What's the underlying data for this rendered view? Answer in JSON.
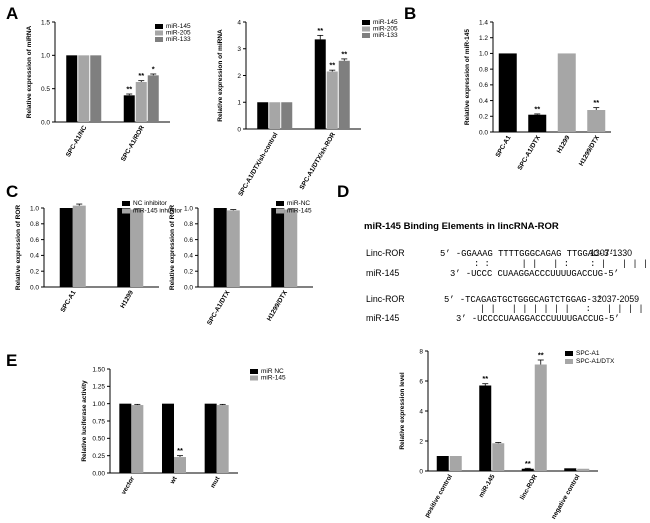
{
  "panel_labels": [
    "A",
    "B",
    "C",
    "D",
    "E"
  ],
  "colors": {
    "black": "#000000",
    "mid": "#a6a6a6",
    "dark": "#7f7f7f"
  },
  "chart_data": [
    {
      "id": "A1",
      "type": "bar",
      "categories": [
        "SPC-A1/NC",
        "SPC-A1/ROR"
      ],
      "series": [
        {
          "name": "miR-145",
          "values": [
            1.0,
            0.4
          ],
          "err": [
            0,
            0.02
          ],
          "color": "#000000"
        },
        {
          "name": "miR-205",
          "values": [
            1.0,
            0.6
          ],
          "err": [
            0,
            0.02
          ],
          "color": "#a6a6a6"
        },
        {
          "name": "miR-133",
          "values": [
            1.0,
            0.7
          ],
          "err": [
            0,
            0.02
          ],
          "color": "#7f7f7f"
        }
      ],
      "stars": [
        [
          "",
          "",
          ""
        ],
        [
          "**",
          "**",
          "*"
        ]
      ],
      "ylabel": "Relative expression of miRNA",
      "ylim": [
        0,
        1.5
      ],
      "yticks": [
        "0.0",
        "0.5",
        "1.0",
        "1.5"
      ],
      "legend": "top-right"
    },
    {
      "id": "A2",
      "type": "bar",
      "categories": [
        "SPC-A1/DTX/sh-control",
        "SPC-A1/DTX/sh-ROR"
      ],
      "series": [
        {
          "name": "miR-145",
          "values": [
            1.0,
            3.35
          ],
          "err": [
            0,
            0.15
          ],
          "color": "#000000"
        },
        {
          "name": "miR-205",
          "values": [
            1.0,
            2.15
          ],
          "err": [
            0,
            0.05
          ],
          "color": "#a6a6a6"
        },
        {
          "name": "miR-133",
          "values": [
            1.0,
            2.55
          ],
          "err": [
            0,
            0.07
          ],
          "color": "#7f7f7f"
        }
      ],
      "stars": [
        [
          "",
          "",
          ""
        ],
        [
          "**",
          "**",
          "**"
        ]
      ],
      "ylabel": "Relative expression of miRNA",
      "ylim": [
        0,
        4
      ],
      "yticks": [
        "0",
        "1",
        "2",
        "3",
        "4"
      ],
      "legend": "top-right"
    },
    {
      "id": "B",
      "type": "bar",
      "categories": [
        "SPC-A1",
        "SPC-A1/DTX",
        "H1299",
        "H1299/DTX"
      ],
      "series": [
        {
          "name": "miR-145",
          "values": [
            1.0,
            0.22,
            1.0,
            0.28
          ],
          "err": [
            0,
            0.01,
            0,
            0.03
          ],
          "colors": [
            "#000000",
            "#000000",
            "#a6a6a6",
            "#a6a6a6"
          ]
        }
      ],
      "stars": [
        "",
        "**",
        "",
        "**"
      ],
      "ylabel": "Relative expression of miR-145",
      "ylim": [
        0,
        1.4
      ],
      "yticks": [
        "0.0",
        "0.2",
        "0.4",
        "0.6",
        "0.8",
        "1.0",
        "1.2",
        "1.4"
      ]
    },
    {
      "id": "C1",
      "type": "bar",
      "categories": [
        "SPC-A1",
        "H1299"
      ],
      "series": [
        {
          "name": "NC inhibitor",
          "values": [
            1.0,
            1.0
          ],
          "err": [
            0,
            0
          ],
          "color": "#000000"
        },
        {
          "name": "miR-145 inhibitor",
          "values": [
            1.03,
            0.98
          ],
          "err": [
            0.02,
            0.01
          ],
          "color": "#a6a6a6"
        }
      ],
      "ylabel": "Relative expression of ROR",
      "ylim": [
        0,
        1.0
      ],
      "yticks": [
        "0.0",
        "0.2",
        "0.4",
        "0.6",
        "0.8",
        "1.0"
      ],
      "legend": "top-right"
    },
    {
      "id": "C2",
      "type": "bar",
      "categories": [
        "SPC-A1/DTX",
        "H1299/DTX"
      ],
      "series": [
        {
          "name": "miR-NC",
          "values": [
            1.0,
            1.0
          ],
          "err": [
            0,
            0
          ],
          "color": "#000000"
        },
        {
          "name": "miR-145",
          "values": [
            0.97,
            0.98
          ],
          "err": [
            0.01,
            0.01
          ],
          "color": "#a6a6a6"
        }
      ],
      "ylabel": "Relative expression of ROR",
      "ylim": [
        0,
        1.0
      ],
      "yticks": [
        "0.0",
        "0.2",
        "0.4",
        "0.6",
        "0.8",
        "1.0"
      ],
      "legend": "top-right"
    },
    {
      "id": "D2",
      "type": "bar",
      "categories": [
        "positive control",
        "miR-145",
        "linc-ROR",
        "negative control"
      ],
      "series": [
        {
          "name": "SPC-A1",
          "values": [
            1.0,
            5.7,
            0.15,
            0.18
          ],
          "err": [
            0,
            0.12,
            0.03,
            0
          ],
          "color": "#000000"
        },
        {
          "name": "SPC-A1/DTX",
          "values": [
            1.0,
            1.85,
            7.1,
            0.15
          ],
          "err": [
            0,
            0.05,
            0.3,
            0
          ],
          "color": "#a6a6a6"
        }
      ],
      "stars": [
        [
          "",
          ""
        ],
        [
          "**",
          ""
        ],
        [
          "**",
          "**"
        ],
        [
          "",
          ""
        ]
      ],
      "ylabel": "Relative expression level",
      "ylim": [
        0,
        8
      ],
      "yticks": [
        "0",
        "2",
        "4",
        "6",
        "8"
      ],
      "legend": "top-right"
    },
    {
      "id": "E",
      "type": "bar",
      "categories": [
        "vector",
        "wt",
        "mut"
      ],
      "series": [
        {
          "name": "miR NC",
          "values": [
            1.0,
            1.0,
            1.0
          ],
          "err": [
            0,
            0,
            0
          ],
          "color": "#000000"
        },
        {
          "name": "miR-145",
          "values": [
            0.98,
            0.23,
            0.98
          ],
          "err": [
            0.01,
            0.02,
            0.01
          ],
          "color": "#a6a6a6"
        }
      ],
      "stars": [
        [
          "",
          ""
        ],
        [
          "",
          "**"
        ],
        [
          "",
          ""
        ]
      ],
      "ylabel": "Relative luciferase activity",
      "ylim": [
        0,
        1.5
      ],
      "yticks": [
        "0.00",
        "0.25",
        "0.50",
        "0.75",
        "1.00",
        "1.25",
        "1.50"
      ],
      "legend": "top-right"
    }
  ],
  "binding": {
    "title": "miR-145 Binding Elements in lincRNA-ROR",
    "site1": {
      "linc_label": "Linc-ROR",
      "linc_seq": "5’ -GGAAAG TTTTGGGCAGAG TTGGAC-3’",
      "linc_pos": "1307-1330",
      "pairs": ": :      | |   | :    : |   | | | | |",
      "mir_label": "miR-145",
      "mir_seq": "3’ -UCCC CUAAGGACCCUUUUGACCUG-5’"
    },
    "site2": {
      "linc_label": "Linc-ROR",
      "linc_seq": "5’ -TCAGAGTGCTGGGCAGTCTGGAG-3’",
      "linc_pos": "2037-2059",
      "pairs": "| |   | | | | | |   :   | | | | | |",
      "mir_label": "miR-145",
      "mir_seq": "3’ -UCCCCUAAGGACCCUUUUGACCUG-5’"
    }
  }
}
